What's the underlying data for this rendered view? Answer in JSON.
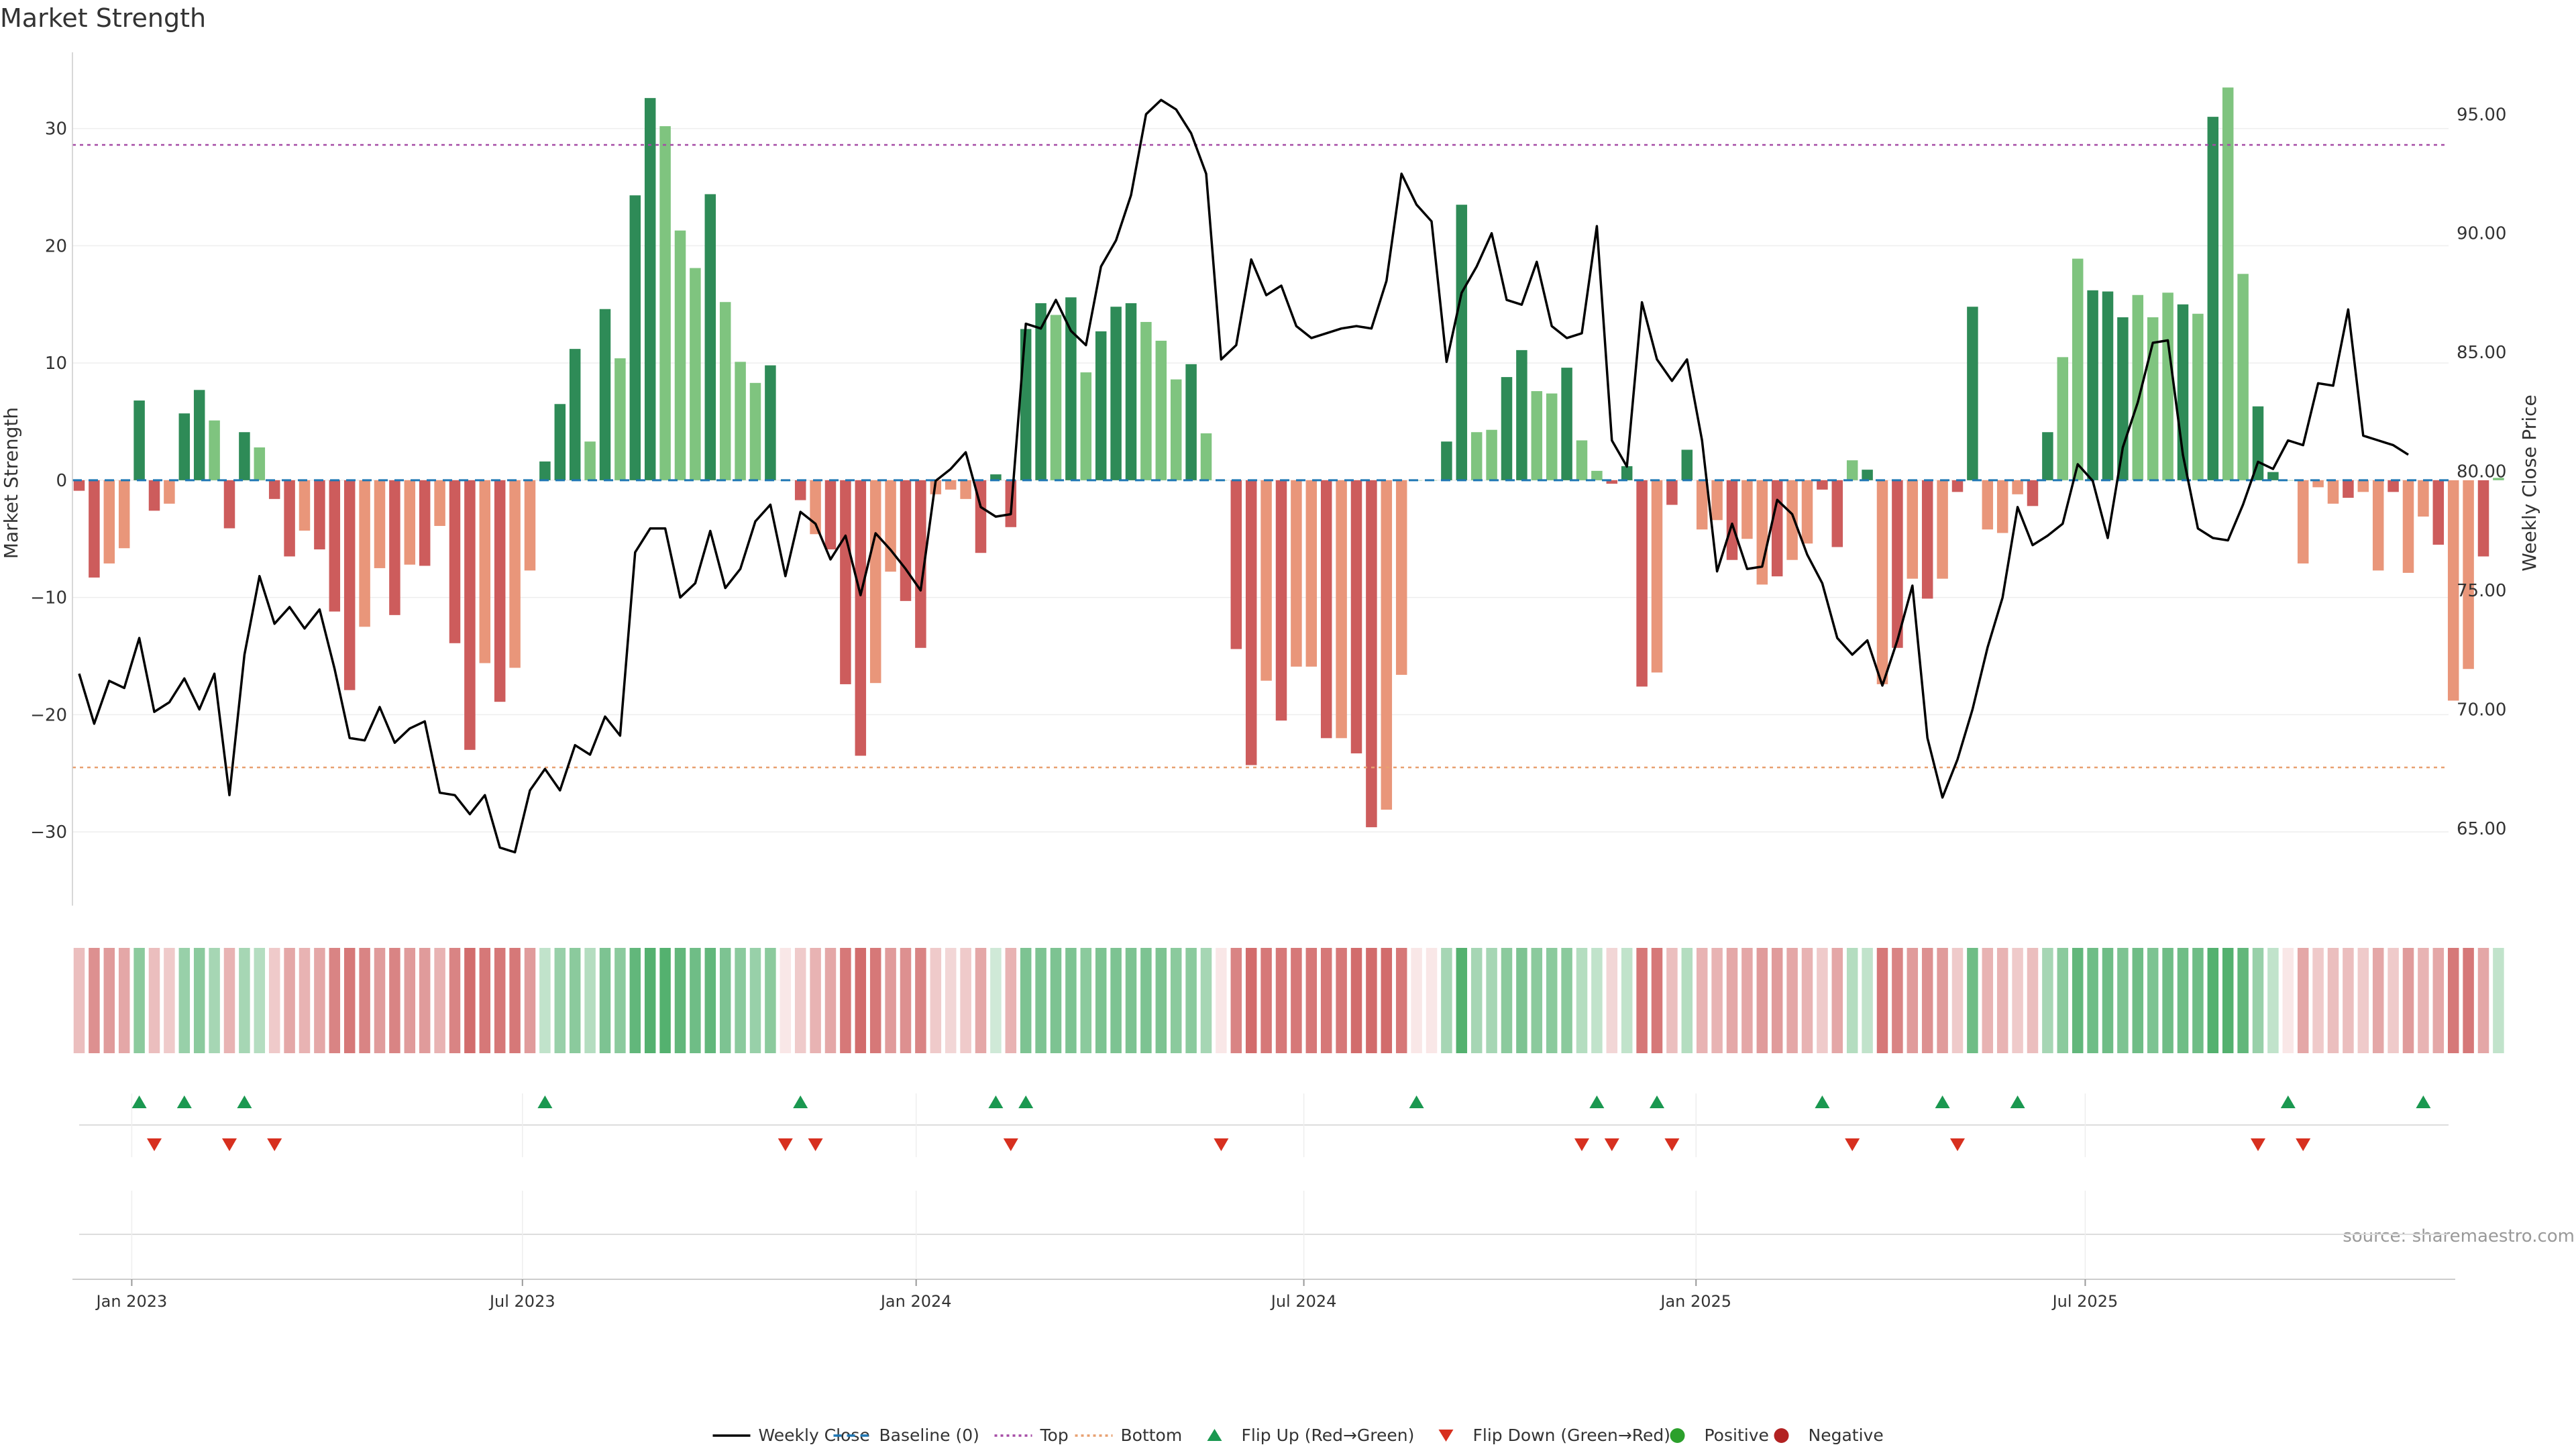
{
  "chart_data": {
    "type": "bar",
    "title": "Market Strength",
    "y_left_label": "Market Strength",
    "y_right_label": "Weekly Close Price",
    "source": "source: sharemaestro.com",
    "x_ticks": [
      "Jan 2023",
      "Jul 2023",
      "Jan 2024",
      "Jul 2024",
      "Jan 2025",
      "Jul 2025"
    ],
    "y_left_ticks": [
      "30",
      "20",
      "10",
      "0",
      "−10",
      "−20",
      "−30"
    ],
    "y_right_ticks": [
      "95.00",
      "90.00",
      "85.00",
      "80.00",
      "75.00",
      "70.00",
      "65.00"
    ],
    "ylim_left": [
      -36,
      36.5
    ],
    "ylim_right": [
      61.9,
      97.6
    ],
    "grid": true,
    "reference_lines": [
      {
        "name": "Baseline (0)",
        "value": 0,
        "color": "#1f77b4",
        "style": "dashed"
      },
      {
        "name": "Top",
        "value": 28.6,
        "color": "#a64ca6",
        "style": "dotted"
      },
      {
        "name": "Bottom",
        "value": -24.5,
        "color": "#e8a070",
        "style": "dotted"
      }
    ],
    "colors": {
      "strong_positive": "#2e8b57",
      "weak_positive": "#7fc47f",
      "strong_negative": "#cd5c5c",
      "weak_negative": "#e9967a",
      "flip_up": "#1a9850",
      "flip_down": "#d7301f",
      "positive_dot": "#2ca02c",
      "negative_dot": "#b22222",
      "price_line": "#000000"
    },
    "series": [
      {
        "name": "Market Strength",
        "type": "bar",
        "values": [
          -0.9,
          -8.3,
          -7.1,
          -5.8,
          6.8,
          -2.6,
          -2.0,
          5.7,
          7.7,
          5.1,
          -4.1,
          4.1,
          2.8,
          -1.6,
          -6.5,
          -4.3,
          -5.9,
          -11.2,
          -17.9,
          -12.5,
          -7.5,
          -11.5,
          -7.2,
          -7.3,
          -3.9,
          -13.9,
          -23.0,
          -15.6,
          -18.9,
          -16.0,
          -7.7,
          1.6,
          6.5,
          11.2,
          3.3,
          14.6,
          10.4,
          24.3,
          32.6,
          30.2,
          21.3,
          18.1,
          24.4,
          15.2,
          10.1,
          8.3,
          9.8,
          0,
          -1.7,
          -4.6,
          -5.9,
          -17.4,
          -23.5,
          -17.3,
          -7.8,
          -10.3,
          -14.3,
          -1.2,
          -0.8,
          -1.6,
          -6.2,
          0.5,
          -4.0,
          12.9,
          15.1,
          14.1,
          15.6,
          9.2,
          12.7,
          14.8,
          15.1,
          13.5,
          11.9,
          8.6,
          9.9,
          4.0,
          0,
          -14.4,
          -24.3,
          -17.1,
          -20.5,
          -15.9,
          -15.9,
          -22.0,
          -22.0,
          -23.3,
          -29.6,
          -28.1,
          -16.6,
          0,
          0,
          3.3,
          23.5,
          4.1,
          4.3,
          8.8,
          11.1,
          7.6,
          7.4,
          9.6,
          3.4,
          0.8,
          -0.3,
          1.2,
          -17.6,
          -16.4,
          -2.1,
          2.6,
          -4.2,
          -3.4,
          -6.8,
          -5.0,
          -8.9,
          -8.2,
          -6.8,
          -5.4,
          -0.8,
          -5.7,
          1.7,
          0.9,
          -17.4,
          -14.3,
          -8.4,
          -10.1,
          -8.4,
          -1.0,
          14.8,
          -4.2,
          -4.5,
          -1.2,
          -2.2,
          4.1,
          10.5,
          18.9,
          16.2,
          16.1,
          13.9,
          15.8,
          13.9,
          16.0,
          15.0,
          14.2,
          31.0,
          33.5,
          17.6,
          6.3,
          0.7,
          0,
          -7.1,
          -0.6,
          -2.0,
          -1.5,
          -1.0,
          -7.7,
          -1.0,
          -7.9,
          -3.1,
          -5.5,
          -18.8,
          -16.1,
          -6.5,
          0.2
        ],
        "shade": [
          1,
          1,
          0,
          0,
          1,
          1,
          0,
          1,
          1,
          0,
          1,
          1,
          0,
          1,
          1,
          0,
          1,
          1,
          1,
          0,
          0,
          1,
          0,
          1,
          0,
          1,
          1,
          0,
          1,
          0,
          0,
          1,
          1,
          1,
          0,
          1,
          0,
          1,
          1,
          0,
          0,
          0,
          1,
          0,
          0,
          0,
          1,
          0,
          1,
          0,
          1,
          1,
          1,
          0,
          0,
          1,
          1,
          0,
          0,
          0,
          1,
          1,
          1,
          1,
          1,
          0,
          1,
          0,
          1,
          1,
          1,
          0,
          0,
          0,
          1,
          0,
          0,
          1,
          1,
          0,
          1,
          0,
          0,
          1,
          0,
          1,
          1,
          0,
          0,
          0,
          0,
          1,
          1,
          0,
          0,
          1,
          1,
          0,
          0,
          1,
          0,
          0,
          1,
          1,
          1,
          0,
          1,
          1,
          0,
          0,
          1,
          0,
          0,
          1,
          0,
          0,
          1,
          1,
          0,
          1,
          0,
          1,
          0,
          1,
          0,
          1,
          1,
          0,
          0,
          0,
          1,
          1,
          0,
          0,
          1,
          1,
          1,
          0,
          0,
          0,
          1,
          0,
          1,
          0,
          0,
          1,
          1,
          0,
          0,
          0,
          0,
          1,
          0,
          0,
          1,
          0,
          0,
          1,
          0,
          0,
          1,
          0,
          0,
          0
        ],
        "intensity": [
          0.3,
          0.7,
          0.6,
          0.5,
          0.6,
          0.3,
          0.2,
          0.5,
          0.6,
          0.4,
          0.4,
          0.4,
          0.3,
          0.2,
          0.5,
          0.4,
          0.5,
          0.8,
          0.9,
          0.8,
          0.6,
          0.8,
          0.6,
          0.6,
          0.4,
          0.8,
          1.0,
          0.9,
          0.9,
          0.9,
          0.6,
          0.2,
          0.5,
          0.6,
          0.3,
          0.7,
          0.6,
          0.9,
          1.0,
          1.0,
          0.9,
          0.8,
          0.9,
          0.7,
          0.6,
          0.5,
          0.6,
          0.1,
          0.2,
          0.4,
          0.5,
          0.9,
          1.0,
          0.9,
          0.6,
          0.7,
          0.8,
          0.2,
          0.1,
          0.2,
          0.5,
          0.1,
          0.4,
          0.7,
          0.7,
          0.7,
          0.7,
          0.6,
          0.7,
          0.7,
          0.7,
          0.7,
          0.7,
          0.6,
          0.6,
          0.4,
          0.1,
          0.8,
          1.0,
          0.9,
          0.9,
          0.9,
          0.9,
          0.9,
          0.9,
          1.0,
          1.0,
          1.0,
          0.9,
          0.1,
          0.1,
          0.4,
          1.0,
          0.4,
          0.4,
          0.6,
          0.7,
          0.6,
          0.6,
          0.6,
          0.3,
          0.2,
          0.1,
          0.2,
          0.9,
          0.9,
          0.3,
          0.3,
          0.4,
          0.4,
          0.5,
          0.5,
          0.6,
          0.6,
          0.5,
          0.4,
          0.2,
          0.5,
          0.3,
          0.2,
          0.9,
          0.8,
          0.6,
          0.7,
          0.6,
          0.2,
          0.8,
          0.4,
          0.4,
          0.2,
          0.3,
          0.4,
          0.6,
          0.9,
          0.8,
          0.8,
          0.7,
          0.8,
          0.7,
          0.8,
          0.8,
          0.8,
          1.0,
          1.0,
          0.9,
          0.5,
          0.2,
          0.1,
          0.5,
          0.2,
          0.3,
          0.3,
          0.2,
          0.5,
          0.2,
          0.6,
          0.4,
          0.5,
          0.9,
          0.9,
          0.5,
          0.2
        ]
      },
      {
        "name": "Weekly Close",
        "type": "line",
        "axis": "right",
        "values": [
          71.5,
          69.4,
          71.2,
          70.9,
          73.0,
          69.9,
          70.3,
          71.3,
          70.0,
          71.5,
          66.4,
          72.3,
          75.6,
          73.6,
          74.3,
          73.4,
          74.2,
          71.7,
          68.8,
          68.7,
          70.1,
          68.6,
          69.2,
          69.5,
          66.5,
          66.4,
          65.6,
          66.4,
          64.2,
          64.0,
          66.6,
          67.5,
          66.6,
          68.5,
          68.1,
          69.7,
          68.9,
          76.6,
          77.6,
          77.6,
          74.7,
          75.3,
          77.5,
          75.1,
          75.9,
          77.9,
          78.6,
          75.6,
          78.3,
          77.8,
          76.3,
          77.3,
          74.8,
          77.4,
          76.7,
          75.9,
          75.0,
          79.6,
          80.1,
          80.8,
          78.5,
          78.1,
          78.2,
          86.2,
          86.0,
          87.2,
          85.9,
          85.3,
          88.6,
          89.7,
          91.6,
          95.0,
          95.6,
          95.2,
          94.2,
          92.5,
          84.7,
          85.3,
          88.9,
          87.4,
          87.8,
          86.1,
          85.6,
          85.8,
          86.0,
          86.1,
          86.0,
          88.0,
          92.5,
          91.2,
          90.5,
          84.6,
          87.5,
          88.6,
          90.0,
          87.2,
          87.0,
          88.8,
          86.1,
          85.6,
          85.8,
          90.3,
          81.3,
          80.2,
          87.1,
          84.7,
          83.8,
          84.7,
          81.3,
          75.8,
          77.8,
          75.9,
          76.0,
          78.8,
          78.2,
          76.5,
          75.3,
          73.0,
          72.3,
          72.9,
          71.0,
          72.9,
          75.2,
          68.8,
          66.3,
          67.9,
          70.0,
          72.6,
          74.7,
          78.5,
          76.9,
          77.3,
          77.8,
          80.3,
          79.6,
          77.2,
          81.0,
          82.9,
          85.4,
          85.5,
          80.7,
          77.6,
          77.2,
          77.1,
          78.6,
          80.4,
          80.1,
          81.3,
          81.1,
          83.7,
          83.6,
          86.8,
          81.5,
          81.3,
          81.1,
          80.7
        ],
        "color": "#000000"
      }
    ],
    "flip_up_weeks": [
      4,
      7,
      11,
      31,
      48,
      61,
      63,
      89,
      101,
      105,
      116,
      124,
      129,
      147,
      156
    ],
    "flip_down_weeks": [
      5,
      10,
      13,
      47,
      49,
      62,
      76,
      100,
      102,
      106,
      118,
      125,
      145,
      148
    ],
    "legend": {
      "placement": "bottom-center",
      "items": [
        {
          "label": "Weekly Close",
          "kind": "line",
          "color": "#000000"
        },
        {
          "label": "Baseline (0)",
          "kind": "dashed",
          "color": "#1f77b4"
        },
        {
          "label": "Top",
          "kind": "dotted",
          "color": "#a64ca6"
        },
        {
          "label": "Bottom",
          "kind": "dotted",
          "color": "#e8a070"
        },
        {
          "label": "Flip Up (Red→Green)",
          "kind": "triangle-up",
          "color": "#1a9850"
        },
        {
          "label": "Flip Down (Green→Red)",
          "kind": "triangle-down",
          "color": "#d7301f"
        },
        {
          "label": "Positive",
          "kind": "dot",
          "color": "#2ca02c"
        },
        {
          "label": "Negative",
          "kind": "dot",
          "color": "#b22222"
        }
      ]
    }
  }
}
